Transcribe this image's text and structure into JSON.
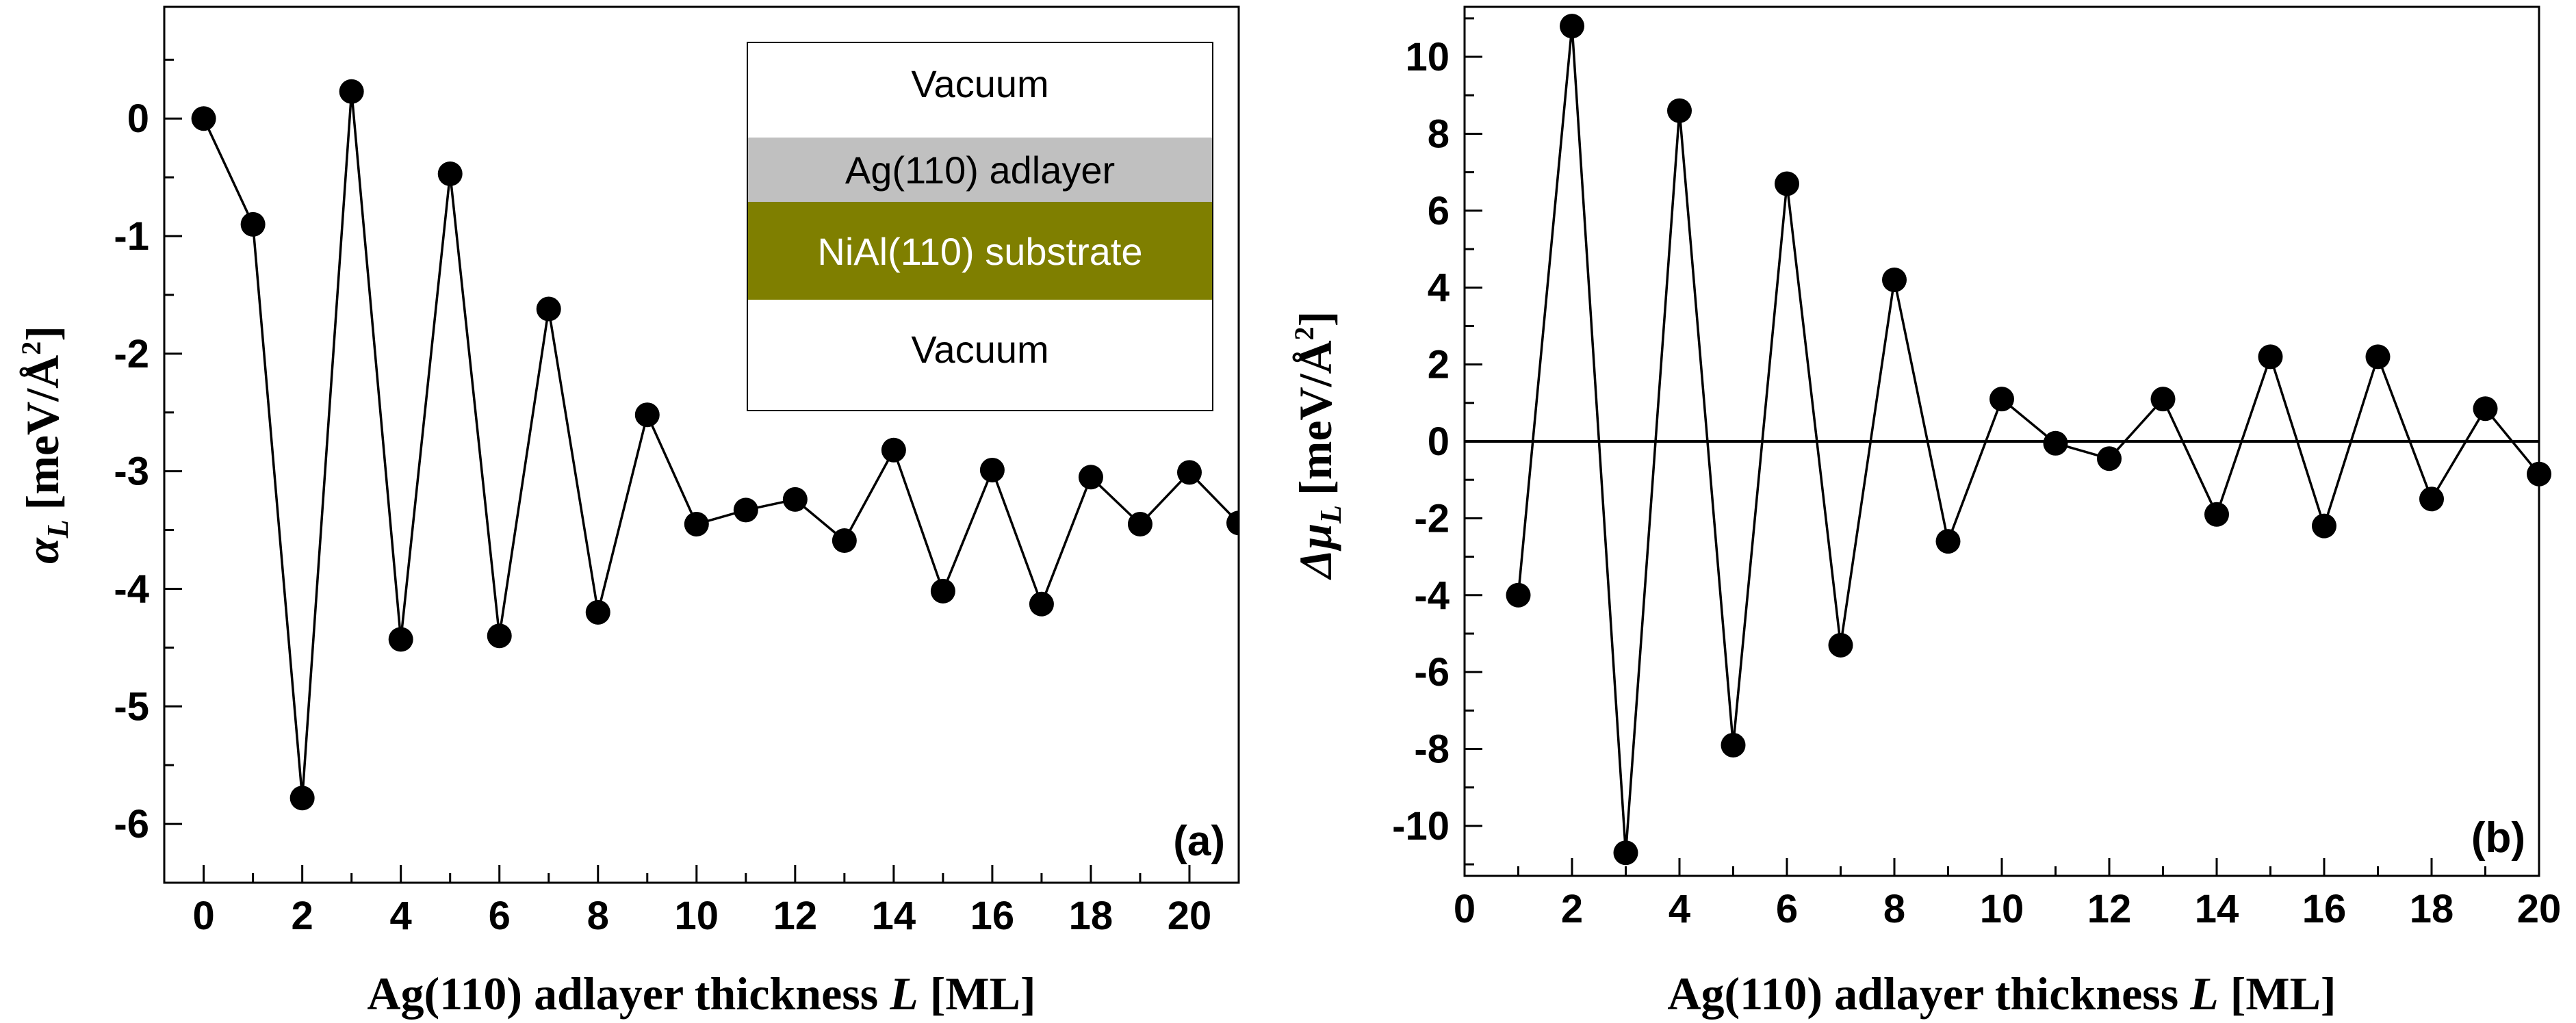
{
  "chart_data": [
    {
      "type": "line",
      "panel": "(a)",
      "xlabel": "Ag(110) adlayer thickness",
      "xlabel_var": "L",
      "xlabel_unit": "[ML]",
      "ylabel_sym": "α",
      "ylabel_sub": "L",
      "ylabel_unit": "[meV/Å",
      "ylabel_sup": "2",
      "ylabel_close": "]",
      "xlim": [
        -0.8,
        21
      ],
      "ylim": [
        -6.5,
        0.95
      ],
      "xticks": [
        0,
        2,
        4,
        6,
        8,
        10,
        12,
        14,
        16,
        18,
        20
      ],
      "yticks": [
        0,
        -1,
        -2,
        -3,
        -4,
        -5,
        -6
      ],
      "x": [
        0,
        1,
        2,
        3,
        4,
        5,
        6,
        7,
        8,
        9,
        10,
        11,
        12,
        13,
        14,
        15,
        16,
        17,
        18,
        19,
        20,
        21
      ],
      "y": [
        0.0,
        -0.9,
        -5.78,
        0.23,
        -4.43,
        -0.47,
        -4.4,
        -1.62,
        -4.2,
        -2.52,
        -3.45,
        -3.33,
        -3.24,
        -3.59,
        -2.82,
        -4.02,
        -2.99,
        -4.13,
        -3.05,
        -3.45,
        -3.01,
        -3.44
      ],
      "zero_line": false,
      "inset": {
        "layers": [
          {
            "label": "Vacuum",
            "fill": "#ffffff",
            "text_color": "#000000"
          },
          {
            "label": "Ag(110) adlayer",
            "fill": "#c0c0c0",
            "text_color": "#000000"
          },
          {
            "label": "NiAl(110) substrate",
            "fill": "#7f7f00",
            "text_color": "#ffffff"
          },
          {
            "label": "Vacuum",
            "fill": "#ffffff",
            "text_color": "#000000"
          }
        ]
      }
    },
    {
      "type": "line",
      "panel": "(b)",
      "xlabel": "Ag(110) adlayer thickness",
      "xlabel_var": "L",
      "xlabel_unit": "[ML]",
      "ylabel_sym": "Δμ",
      "ylabel_sub": "L",
      "ylabel_unit": "[meV/Å",
      "ylabel_sup": "2",
      "ylabel_close": "]",
      "xlim": [
        0,
        20
      ],
      "ylim": [
        -11.3,
        11.3
      ],
      "xticks": [
        0,
        2,
        4,
        6,
        8,
        10,
        12,
        14,
        16,
        18,
        20
      ],
      "yticks": [
        10,
        8,
        6,
        4,
        2,
        0,
        -2,
        -4,
        -6,
        -8,
        -10
      ],
      "x": [
        1,
        2,
        3,
        4,
        5,
        6,
        7,
        8,
        9,
        10,
        11,
        12,
        13,
        14,
        15,
        16,
        17,
        18,
        19,
        20
      ],
      "y": [
        -4.0,
        10.8,
        -10.7,
        8.6,
        -7.9,
        6.7,
        -5.3,
        4.2,
        -2.6,
        1.1,
        -0.05,
        -0.45,
        1.1,
        -1.9,
        2.2,
        -2.2,
        2.2,
        -1.5,
        0.85,
        -0.85
      ],
      "zero_line": true
    }
  ]
}
